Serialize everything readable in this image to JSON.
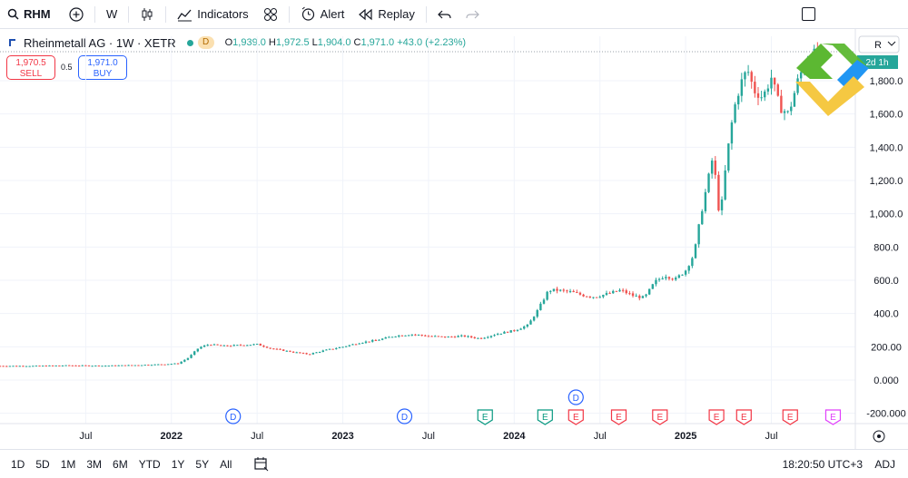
{
  "toolbar": {
    "symbol": "RHM",
    "interval": "W",
    "indicators_label": "Indicators",
    "alert_label": "Alert",
    "replay_label": "Replay"
  },
  "legend": {
    "title": "Rheinmetall AG · 1W · XETR",
    "badge": "D",
    "open": "1,939.0",
    "high": "1,972.5",
    "low": "1,904.0",
    "close": "1,971.0",
    "change": "+43.0 (+2.23%)"
  },
  "trade": {
    "sell_price": "1,970.5",
    "sell_label": "SELL",
    "spread": "0.5",
    "buy_price": "1,971.0",
    "buy_label": "BUY"
  },
  "price_scale": {
    "currency_fragment": "R",
    "last_price_badge": "2d 1h"
  },
  "colors": {
    "up": "#26a69a",
    "down": "#ef5350",
    "grid": "#f0f3fa",
    "accent": "#2962ff"
  },
  "chart_data": {
    "type": "candlestick",
    "interval": "1W",
    "y_ticks": [
      -200,
      0,
      200,
      400,
      600,
      800,
      1000,
      1200,
      1400,
      1600,
      1800
    ],
    "y_tick_labels": [
      "-200.000",
      "0.000",
      "200.00",
      "400.0",
      "600.0",
      "800.0",
      "1,000.0",
      "1,200.0",
      "1,400.0",
      "1,600.0",
      "1,800.0"
    ],
    "ylim": [
      -230,
      1930
    ],
    "x_ticks": [
      {
        "label": "Jul",
        "t": 2021.5
      },
      {
        "label": "2022",
        "t": 2022.0
      },
      {
        "label": "Jul",
        "t": 2022.5
      },
      {
        "label": "2023",
        "t": 2023.0
      },
      {
        "label": "Jul",
        "t": 2023.5
      },
      {
        "label": "2024",
        "t": 2024.0
      },
      {
        "label": "Jul",
        "t": 2024.5
      },
      {
        "label": "2025",
        "t": 2025.0
      },
      {
        "label": "Jul",
        "t": 2025.5
      }
    ],
    "xlim": [
      2021.0,
      2025.99
    ],
    "series_close": [
      [
        2021.0,
        85
      ],
      [
        2021.2,
        85
      ],
      [
        2021.4,
        88
      ],
      [
        2021.6,
        86
      ],
      [
        2021.8,
        90
      ],
      [
        2021.95,
        95
      ],
      [
        2022.04,
        100
      ],
      [
        2022.1,
        135
      ],
      [
        2022.16,
        195
      ],
      [
        2022.22,
        215
      ],
      [
        2022.3,
        205
      ],
      [
        2022.4,
        210
      ],
      [
        2022.5,
        215
      ],
      [
        2022.58,
        190
      ],
      [
        2022.7,
        170
      ],
      [
        2022.8,
        155
      ],
      [
        2022.9,
        180
      ],
      [
        2023.0,
        200
      ],
      [
        2023.1,
        225
      ],
      [
        2023.2,
        240
      ],
      [
        2023.3,
        265
      ],
      [
        2023.4,
        275
      ],
      [
        2023.5,
        265
      ],
      [
        2023.6,
        258
      ],
      [
        2023.7,
        265
      ],
      [
        2023.8,
        250
      ],
      [
        2023.9,
        278
      ],
      [
        2024.0,
        298
      ],
      [
        2024.08,
        330
      ],
      [
        2024.14,
        425
      ],
      [
        2024.2,
        540
      ],
      [
        2024.25,
        540
      ],
      [
        2024.33,
        530
      ],
      [
        2024.4,
        510
      ],
      [
        2024.47,
        500
      ],
      [
        2024.55,
        520
      ],
      [
        2024.62,
        540
      ],
      [
        2024.7,
        505
      ],
      [
        2024.76,
        495
      ],
      [
        2024.82,
        590
      ],
      [
        2024.88,
        630
      ],
      [
        2024.94,
        605
      ],
      [
        2025.0,
        660
      ],
      [
        2025.05,
        760
      ],
      [
        2025.09,
        1000
      ],
      [
        2025.12,
        1150
      ],
      [
        2025.16,
        1350
      ],
      [
        2025.2,
        960
      ],
      [
        2025.24,
        1340
      ],
      [
        2025.28,
        1620
      ],
      [
        2025.32,
        1780
      ],
      [
        2025.36,
        1870
      ],
      [
        2025.4,
        1740
      ],
      [
        2025.45,
        1700
      ],
      [
        2025.5,
        1820
      ],
      [
        2025.55,
        1640
      ],
      [
        2025.6,
        1600
      ],
      [
        2025.66,
        1820
      ],
      [
        2025.72,
        1950
      ],
      [
        2025.78,
        1971
      ]
    ],
    "last_close": 1971.0,
    "events": [
      {
        "label": "D",
        "t": 2022.36,
        "kind": "dividend",
        "row": 0
      },
      {
        "label": "D",
        "t": 2023.36,
        "kind": "dividend",
        "row": 0
      },
      {
        "label": "E",
        "t": 2023.83,
        "kind": "earnings-past",
        "row": 0
      },
      {
        "label": "E",
        "t": 2024.18,
        "kind": "earnings-past",
        "row": 0
      },
      {
        "label": "D",
        "t": 2024.36,
        "kind": "dividend",
        "row": 1
      },
      {
        "label": "E",
        "t": 2024.36,
        "kind": "earnings-neg",
        "row": 0
      },
      {
        "label": "E",
        "t": 2024.61,
        "kind": "earnings-neg",
        "row": 0
      },
      {
        "label": "E",
        "t": 2024.85,
        "kind": "earnings-neg",
        "row": 0
      },
      {
        "label": "E",
        "t": 2025.18,
        "kind": "earnings-neg",
        "row": 0
      },
      {
        "label": "E",
        "t": 2025.34,
        "kind": "earnings-neg",
        "row": 0
      },
      {
        "label": "E",
        "t": 2025.61,
        "kind": "earnings-neg",
        "row": 0
      },
      {
        "label": "E",
        "t": 2025.86,
        "kind": "earnings-future",
        "row": 0
      }
    ]
  },
  "bottombar": {
    "ranges": [
      "1D",
      "5D",
      "1M",
      "3M",
      "6M",
      "YTD",
      "1Y",
      "5Y",
      "All"
    ],
    "clock": "18:20:50 UTC+3",
    "adj_label": "ADJ"
  }
}
